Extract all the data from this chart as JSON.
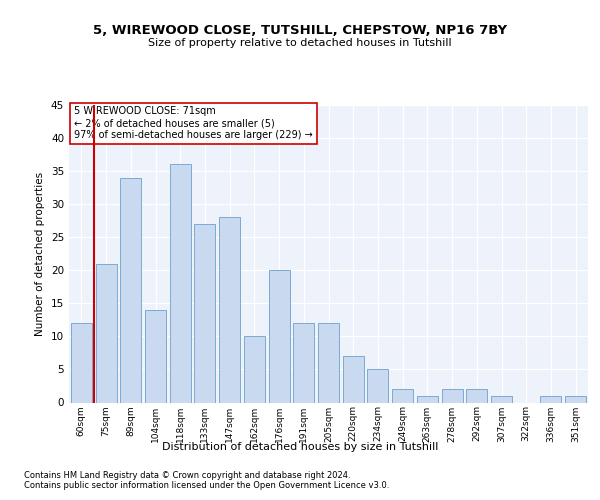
{
  "title": "5, WIREWOOD CLOSE, TUTSHILL, CHEPSTOW, NP16 7BY",
  "subtitle": "Size of property relative to detached houses in Tutshill",
  "xlabel": "Distribution of detached houses by size in Tutshill",
  "ylabel": "Number of detached properties",
  "bar_labels": [
    "60sqm",
    "75sqm",
    "89sqm",
    "104sqm",
    "118sqm",
    "133sqm",
    "147sqm",
    "162sqm",
    "176sqm",
    "191sqm",
    "205sqm",
    "220sqm",
    "234sqm",
    "249sqm",
    "263sqm",
    "278sqm",
    "292sqm",
    "307sqm",
    "322sqm",
    "336sqm",
    "351sqm"
  ],
  "bar_values": [
    12,
    21,
    34,
    14,
    36,
    27,
    28,
    10,
    20,
    12,
    12,
    7,
    5,
    2,
    1,
    2,
    2,
    1,
    0,
    1,
    1
  ],
  "bar_color": "#c9d9f0",
  "bar_edge_color": "#7aaad0",
  "marker_color": "#cc0000",
  "annotation_title": "5 WIREWOOD CLOSE: 71sqm",
  "annotation_line1": "← 2% of detached houses are smaller (5)",
  "annotation_line2": "97% of semi-detached houses are larger (229) →",
  "annotation_box_color": "#ffffff",
  "annotation_border_color": "#cc0000",
  "ylim": [
    0,
    45
  ],
  "yticks": [
    0,
    5,
    10,
    15,
    20,
    25,
    30,
    35,
    40,
    45
  ],
  "footer1": "Contains HM Land Registry data © Crown copyright and database right 2024.",
  "footer2": "Contains public sector information licensed under the Open Government Licence v3.0.",
  "plot_bg_color": "#eef2fa"
}
